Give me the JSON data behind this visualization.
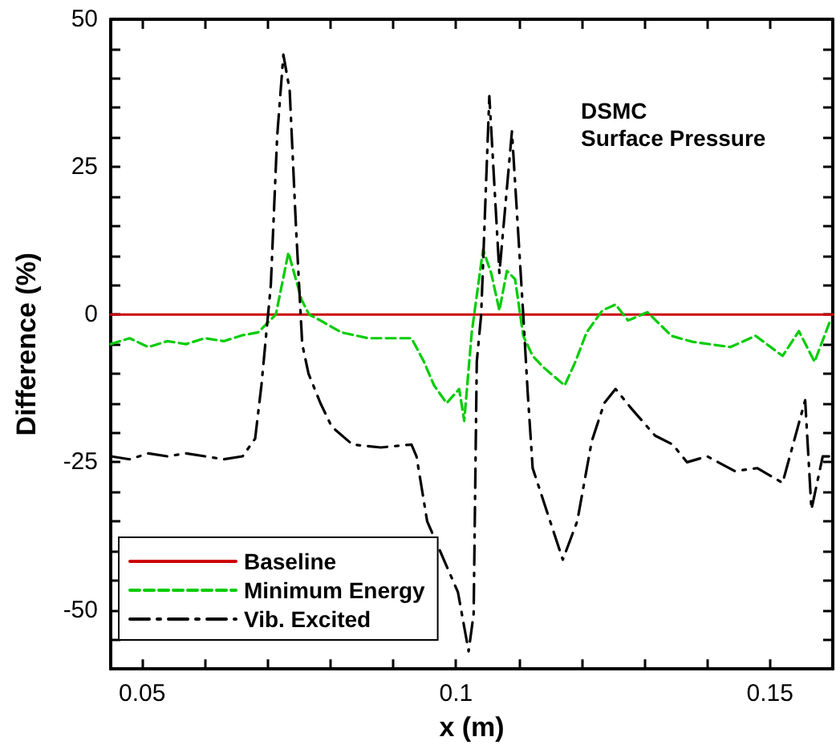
{
  "chart_data": {
    "type": "line",
    "xlabel": "x (m)",
    "ylabel": "Difference (%)",
    "annotations": [
      "DSMC",
      "Surface Pressure"
    ],
    "xlim": [
      0.045,
      0.16
    ],
    "ylim": [
      -60,
      50
    ],
    "xticks": [
      0.05,
      {
        "value": 0.06,
        "label": null
      },
      {
        "value": 0.07,
        "label": null
      },
      {
        "value": 0.08,
        "label": null
      },
      {
        "value": 0.09,
        "label": null
      },
      0.1,
      {
        "value": 0.11,
        "label": null
      },
      {
        "value": 0.12,
        "label": null
      },
      {
        "value": 0.13,
        "label": null
      },
      {
        "value": 0.14,
        "label": null
      },
      0.15
    ],
    "yticks": [
      {
        "value": -55,
        "label": null
      },
      -50,
      {
        "value": -45,
        "label": null
      },
      {
        "value": -40,
        "label": null
      },
      {
        "value": -35,
        "label": null
      },
      {
        "value": -30,
        "label": null
      },
      -25,
      {
        "value": -20,
        "label": null
      },
      {
        "value": -15,
        "label": null
      },
      {
        "value": -10,
        "label": null
      },
      {
        "value": -5,
        "label": null
      },
      0,
      {
        "value": 5,
        "label": null
      },
      {
        "value": 10,
        "label": null
      },
      {
        "value": 15,
        "label": null
      },
      {
        "value": 20,
        "label": null
      },
      25,
      {
        "value": 30,
        "label": null
      },
      {
        "value": 35,
        "label": null
      },
      {
        "value": 40,
        "label": null
      },
      {
        "value": 45,
        "label": null
      },
      50
    ],
    "grid": false,
    "legend": "bottom left",
    "marker": "none",
    "series": [
      {
        "name": "Baseline",
        "color": "#cc0000",
        "line_style": "solid",
        "x": [
          0.045,
          0.16
        ],
        "values": [
          0,
          0
        ]
      },
      {
        "name": "Minimum Energy",
        "color": "#00cc00",
        "line_style": "dashed",
        "x": [
          0.045,
          0.048,
          0.051,
          0.054,
          0.057,
          0.06,
          0.063,
          0.066,
          0.0685,
          0.0713,
          0.0733,
          0.0754,
          0.0766,
          0.0784,
          0.0817,
          0.086,
          0.0929,
          0.0949,
          0.0965,
          0.0985,
          0.1005,
          0.1013,
          0.1025,
          0.1043,
          0.1056,
          0.1069,
          0.1081,
          0.1094,
          0.1107,
          0.1122,
          0.114,
          0.1173,
          0.119,
          0.1208,
          0.1233,
          0.1254,
          0.1274,
          0.1305,
          0.1343,
          0.1376,
          0.1437,
          0.1477,
          0.152,
          0.1546,
          0.1571,
          0.1596
        ],
        "values": [
          -5,
          -4,
          -5.5,
          -4.5,
          -5,
          -4,
          -4.5,
          -3.5,
          -3,
          0,
          10.5,
          2.5,
          0,
          -1,
          -3,
          -4,
          -4,
          -8,
          -12,
          -15,
          -12.6,
          -18,
          -3,
          11,
          7,
          0.7,
          7.4,
          6,
          -3.6,
          -7,
          -9,
          -12,
          -8,
          -3,
          0.7,
          1.7,
          -1,
          0.4,
          -3.6,
          -4.6,
          -5.5,
          -3.6,
          -7,
          -2.8,
          -8,
          -1
        ]
      },
      {
        "name": "Vib. Excited",
        "color": "#000000",
        "line_style": "dashdot",
        "x": [
          0.045,
          0.048,
          0.051,
          0.054,
          0.057,
          0.06,
          0.063,
          0.066,
          0.068,
          0.069,
          0.0705,
          0.0715,
          0.0725,
          0.0735,
          0.0745,
          0.0755,
          0.0765,
          0.0784,
          0.0802,
          0.0835,
          0.088,
          0.0929,
          0.0937,
          0.0954,
          0.1003,
          0.102,
          0.1028,
          0.1033,
          0.104,
          0.1053,
          0.1069,
          0.1089,
          0.1107,
          0.1114,
          0.1122,
          0.117,
          0.1193,
          0.1216,
          0.1236,
          0.1254,
          0.128,
          0.1317,
          0.1345,
          0.1368,
          0.14,
          0.1444,
          0.148,
          0.152,
          0.1556,
          0.1566,
          0.1584,
          0.1596
        ],
        "values": [
          -24,
          -24.5,
          -23.5,
          -24,
          -23.5,
          -24,
          -24.5,
          -24,
          -21,
          -12,
          5,
          30,
          44,
          38,
          15,
          -5,
          -10,
          -15,
          -19,
          -22,
          -22.5,
          -22,
          -24,
          -35,
          -47,
          -57,
          -50.7,
          -8,
          0,
          37,
          7,
          31,
          0,
          -13,
          -26,
          -41.5,
          -35,
          -21.5,
          -15,
          -12.6,
          -16,
          -20.5,
          -22,
          -25,
          -24,
          -26.5,
          -26,
          -28.5,
          -14.5,
          -33,
          -24,
          -24
        ]
      }
    ]
  }
}
